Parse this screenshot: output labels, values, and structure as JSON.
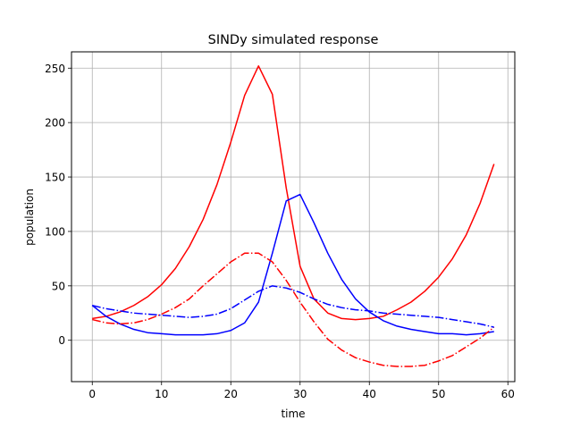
{
  "chart_data": {
    "type": "line",
    "title": "SINDy simulated response",
    "xlabel": "time",
    "ylabel": "population",
    "xlim": [
      -3,
      61
    ],
    "ylim": [
      -38,
      265
    ],
    "xticks": [
      0,
      10,
      20,
      30,
      40,
      50,
      60
    ],
    "yticks": [
      0,
      50,
      100,
      150,
      200,
      250
    ],
    "grid": true,
    "legend": "none",
    "x": [
      0,
      2,
      4,
      6,
      8,
      10,
      12,
      14,
      16,
      18,
      20,
      22,
      24,
      26,
      28,
      30,
      32,
      34,
      36,
      38,
      40,
      42,
      44,
      46,
      48,
      50,
      52,
      54,
      56,
      58
    ],
    "series": [
      {
        "color": "#ff0000",
        "style": "solid",
        "values": [
          20,
          22,
          26,
          32,
          40,
          51,
          66,
          86,
          111,
          143,
          182,
          225,
          252,
          226,
          140,
          68,
          38,
          25,
          20,
          19,
          20,
          22,
          28,
          35,
          45,
          58,
          75,
          97,
          126,
          162
        ]
      },
      {
        "color": "#0000ff",
        "style": "solid",
        "values": [
          32,
          22,
          15,
          10,
          7,
          6,
          5,
          5,
          5,
          6,
          9,
          16,
          35,
          80,
          128,
          134,
          108,
          80,
          56,
          38,
          26,
          18,
          13,
          10,
          8,
          6,
          6,
          5,
          6,
          8
        ]
      },
      {
        "color": "#ff0000",
        "style": "dashdot",
        "values": [
          19,
          16,
          15,
          16,
          19,
          24,
          30,
          38,
          50,
          61,
          72,
          80,
          80,
          72,
          55,
          35,
          17,
          1,
          -9,
          -16,
          -20,
          -23,
          -24,
          -24,
          -23,
          -19,
          -14,
          -6,
          2,
          12
        ]
      },
      {
        "color": "#0000ff",
        "style": "dashdot",
        "values": [
          32,
          29,
          27,
          25,
          24,
          23,
          22,
          21,
          22,
          24,
          29,
          37,
          45,
          50,
          48,
          44,
          38,
          33,
          30,
          28,
          27,
          25,
          24,
          23,
          22,
          21,
          19,
          17,
          15,
          12
        ]
      }
    ]
  }
}
